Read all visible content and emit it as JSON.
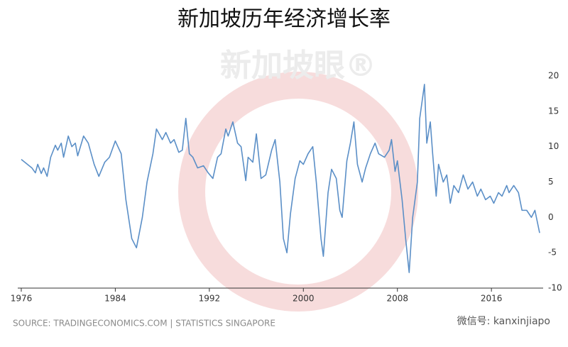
{
  "chart_data": {
    "type": "line",
    "title": "新加坡历年经济增长率",
    "source": "SOURCE: TRADINGECONOMICS.COM | STATISTICS SINGAPORE",
    "watermark": "新加坡眼®",
    "wechat": "微信号: kanxinjiapo",
    "color": "#5b8fc7",
    "x": [
      1976.0,
      1976.9,
      1977.2,
      1977.4,
      1977.7,
      1977.9,
      1978.2,
      1978.5,
      1978.9,
      1979.1,
      1979.4,
      1979.6,
      1980.0,
      1980.3,
      1980.6,
      1980.8,
      1981.3,
      1981.7,
      1982.2,
      1982.6,
      1983.1,
      1983.5,
      1984.0,
      1984.5,
      1984.9,
      1985.4,
      1985.8,
      1986.3,
      1986.7,
      1987.2,
      1987.5,
      1988.0,
      1988.3,
      1988.7,
      1989.0,
      1989.4,
      1989.7,
      1990.0,
      1990.3,
      1990.6,
      1991.0,
      1991.5,
      1991.9,
      1992.3,
      1992.7,
      1993.0,
      1993.4,
      1993.6,
      1994.0,
      1994.4,
      1994.7,
      1995.1,
      1995.3,
      1995.7,
      1996.0,
      1996.4,
      1996.8,
      1997.3,
      1997.6,
      1998.0,
      1998.3,
      1998.6,
      1998.9,
      1999.3,
      1999.7,
      2000.0,
      2000.4,
      2000.8,
      2001.1,
      2001.5,
      2001.7,
      2002.1,
      2002.4,
      2002.8,
      2003.1,
      2003.3,
      2003.7,
      2004.0,
      2004.3,
      2004.6,
      2005.0,
      2005.3,
      2005.7,
      2006.1,
      2006.4,
      2006.9,
      2007.3,
      2007.5,
      2007.8,
      2008.0,
      2008.4,
      2008.7,
      2009.0,
      2009.3,
      2009.7,
      2009.9,
      2010.3,
      2010.5,
      2010.8,
      2011.0,
      2011.3,
      2011.5,
      2011.9,
      2012.2,
      2012.5,
      2012.8,
      2013.2,
      2013.6,
      2014.0,
      2014.4,
      2014.8,
      2015.1,
      2015.5,
      2015.9,
      2016.2,
      2016.6,
      2016.9,
      2017.3,
      2017.5,
      2017.9,
      2018.3,
      2018.6,
      2019.0,
      2019.4,
      2019.7,
      2020.1
    ],
    "values": [
      8.2,
      7.0,
      6.3,
      7.5,
      6.2,
      7.0,
      5.8,
      8.5,
      10.2,
      9.5,
      10.5,
      8.5,
      11.5,
      10.0,
      10.5,
      8.7,
      11.5,
      10.5,
      7.5,
      5.8,
      7.8,
      8.5,
      10.8,
      9.0,
      2.5,
      -3.0,
      -4.3,
      0.0,
      5.0,
      9.0,
      12.5,
      11.0,
      12.0,
      10.5,
      11.0,
      9.2,
      9.5,
      14.0,
      9.0,
      8.5,
      7.0,
      7.3,
      6.3,
      5.5,
      8.5,
      9.0,
      12.5,
      11.5,
      13.5,
      10.5,
      10.0,
      5.2,
      8.5,
      7.8,
      11.8,
      5.5,
      6.0,
      9.5,
      11.0,
      5.0,
      -3.0,
      -5.0,
      0.5,
      5.5,
      8.0,
      7.5,
      9.0,
      10.0,
      5.0,
      -3.0,
      -5.5,
      3.5,
      6.8,
      5.5,
      1.0,
      0.0,
      8.0,
      10.5,
      13.5,
      7.5,
      5.0,
      7.0,
      9.0,
      10.5,
      9.0,
      8.5,
      9.5,
      11.0,
      6.5,
      8.0,
      2.5,
      -3.0,
      -7.8,
      0.0,
      5.0,
      14.0,
      18.8,
      10.5,
      13.5,
      9.0,
      3.0,
      7.5,
      5.0,
      6.0,
      2.0,
      4.5,
      3.5,
      6.0,
      4.0,
      5.0,
      3.0,
      4.0,
      2.5,
      3.0,
      2.0,
      3.5,
      3.0,
      4.5,
      3.5,
      4.5,
      3.5,
      1.0,
      1.0,
      0.0,
      1.0,
      -2.2
    ],
    "xlim": [
      1975.7,
      2020.4
    ],
    "ylim": [
      -10,
      20
    ],
    "xticks": [
      1976,
      1984,
      1992,
      2000,
      2008,
      2016
    ],
    "yticks": [
      -10,
      -5,
      0,
      5,
      10,
      15,
      20
    ],
    "grid": false
  }
}
